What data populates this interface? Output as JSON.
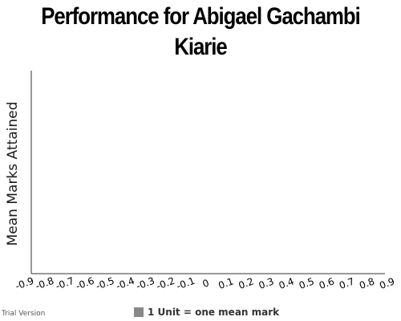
{
  "chart_data": {
    "type": "bar",
    "title": "Performance for Abigael Gachambi Kiarie",
    "xlabel": "",
    "ylabel": "Mean Marks Attained",
    "xlim": [
      -0.9,
      0.9
    ],
    "x_ticks": [
      "-0.9",
      "-0.8",
      "-0.7",
      "-0.6",
      "-0.5",
      "-0.4",
      "-0.3",
      "-0.2",
      "-0.1",
      "0",
      "0.1",
      "0.2",
      "0.3",
      "0.4",
      "0.5",
      "0.6",
      "0.7",
      "0.8",
      "0.9"
    ],
    "series": [],
    "grid": false,
    "legend": "bottom-center"
  },
  "legend": {
    "text": "1 Unit = one mean mark",
    "swatch_color": "#888888"
  },
  "watermark": "Trial Version",
  "colors": {
    "axis": "#333333",
    "text": "#000000"
  }
}
